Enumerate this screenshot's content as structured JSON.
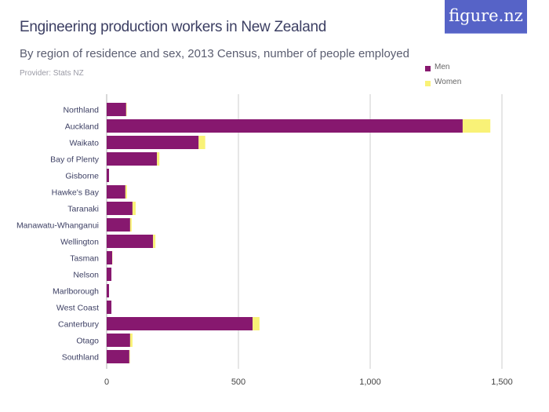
{
  "header": {
    "title": "Engineering production workers in New Zealand",
    "subtitle": "By region of residence and sex, 2013 Census, number of people employed",
    "provider": "Provider: Stats NZ",
    "logo": "figure.nz"
  },
  "colors": {
    "men": "#87186f",
    "women": "#f9f277",
    "grid": "#dddddd"
  },
  "chart_data": {
    "type": "bar",
    "orientation": "horizontal",
    "stacked": true,
    "title": "Engineering production workers in New Zealand",
    "subtitle": "By region of residence and sex, 2013 Census, number of people employed",
    "categories": [
      "Northland",
      "Auckland",
      "Waikato",
      "Bay of Plenty",
      "Gisborne",
      "Hawke's Bay",
      "Taranaki",
      "Manawatu-Whanganui",
      "Wellington",
      "Tasman",
      "Nelson",
      "Marlborough",
      "West Coast",
      "Canterbury",
      "Otago",
      "Southland"
    ],
    "series": [
      {
        "name": "Men",
        "values": [
          74,
          1351,
          349,
          191,
          9,
          71,
          98,
          89,
          176,
          21,
          18,
          9,
          18,
          554,
          89,
          86
        ]
      },
      {
        "name": "Women",
        "values": [
          2,
          105,
          25,
          9,
          0,
          6,
          12,
          6,
          9,
          1,
          0,
          0,
          0,
          26,
          9,
          2
        ]
      }
    ],
    "xlim": [
      0,
      1600
    ],
    "ticks": [
      0,
      500,
      1000,
      1500
    ],
    "tick_labels": [
      "0",
      "500",
      "1,000",
      "1,500"
    ],
    "grid": true,
    "legend": "top-right"
  }
}
